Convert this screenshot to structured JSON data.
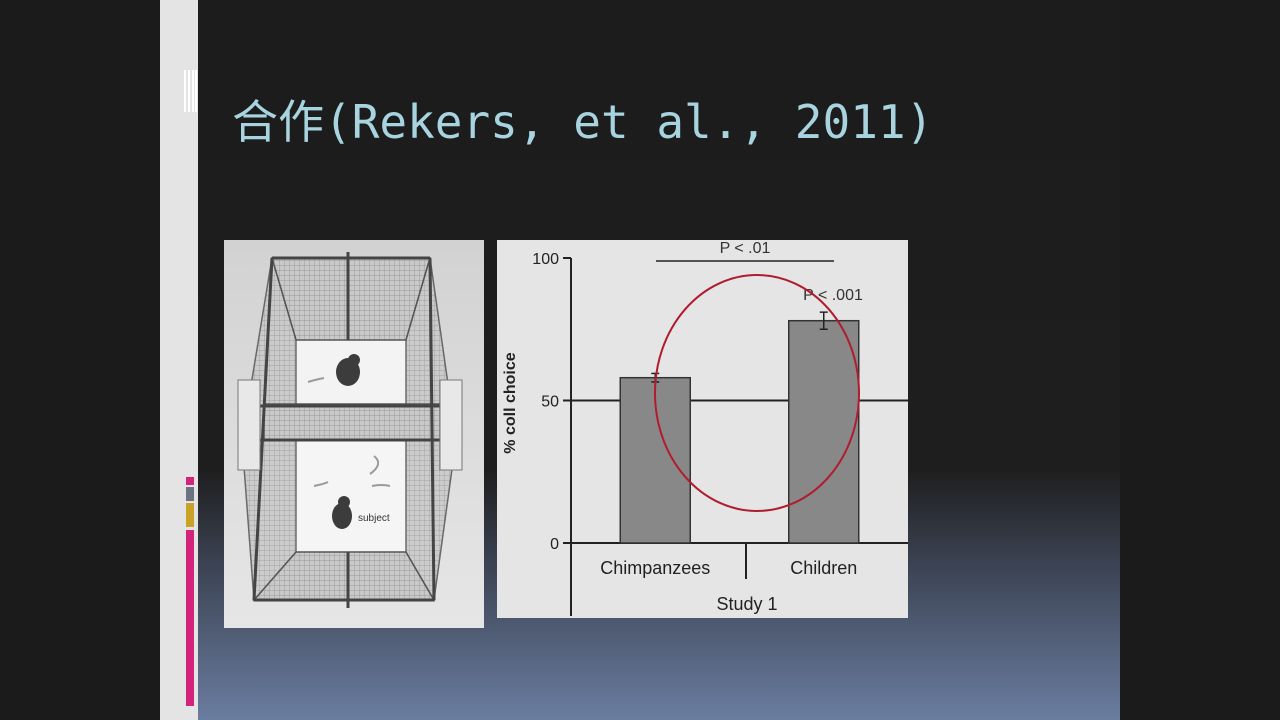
{
  "slide": {
    "title": "合作(Rekers, et al., 2011)",
    "colors": {
      "title": "#a8d4e0",
      "accent_magenta": "#d4237a",
      "accent_gold": "#c9a227",
      "accent_gray": "#6b7382",
      "highlight_circle": "#b01c2e"
    }
  },
  "photo": {
    "label": "subject"
  },
  "chart_data": {
    "type": "bar",
    "categories": [
      "Chimpanzees",
      "Children"
    ],
    "values": [
      58,
      78
    ],
    "errors": [
      1.5,
      3
    ],
    "ylim": [
      0,
      100
    ],
    "yticks": [
      0,
      50,
      100
    ],
    "ylabel": "% coll choice",
    "xlabel": "Study 1",
    "reference_line": 50,
    "grid": false,
    "annotations": [
      {
        "text": "P < .01",
        "type": "bracket",
        "between": [
          "Chimpanzees",
          "Children"
        ]
      },
      {
        "text": "P < .001",
        "type": "label",
        "target": "Children"
      }
    ]
  }
}
